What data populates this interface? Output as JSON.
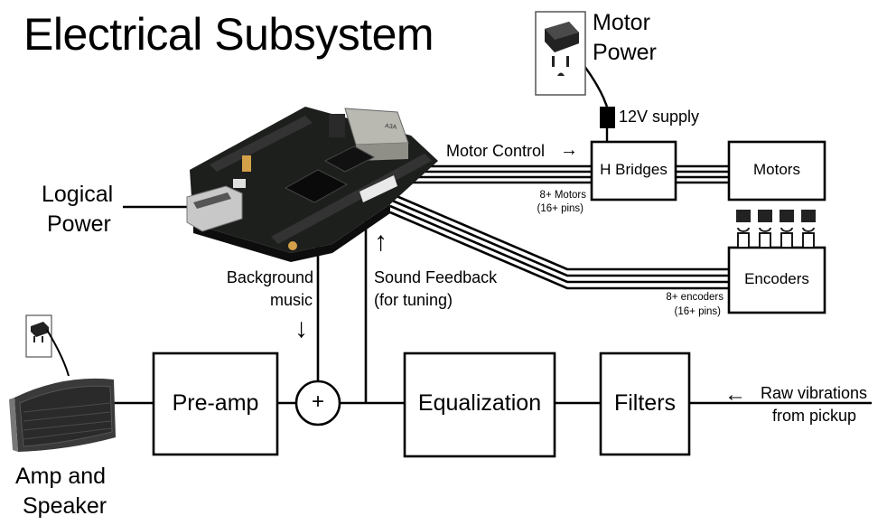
{
  "title": "Electrical Subsystem",
  "labels": {
    "motor_power": [
      "Motor",
      "Power"
    ],
    "supply_12v": "12V supply",
    "motor_control": "Motor Control",
    "motor_control_arrow": "→",
    "motors_count": [
      "8+ Motors",
      "(16+ pins)"
    ],
    "encoders_count": [
      "8+ encoders",
      "(16+ pins)"
    ],
    "logical_power": [
      "Logical",
      "Power"
    ],
    "background_music": [
      "Background",
      "music"
    ],
    "sound_feedback": [
      "Sound Feedback",
      "(for tuning)"
    ],
    "raw_vibrations": [
      "Raw vibrations",
      "from pickup"
    ],
    "raw_arrow": "←",
    "amp_speaker": [
      "Amp and",
      "Speaker"
    ],
    "up_arrow": "↑",
    "down_arrow": "↓"
  },
  "blocks": {
    "h_bridges": "H Bridges",
    "motors": "Motors",
    "encoders": "Encoders",
    "pre_amp": "Pre-amp",
    "summer": "+",
    "equalization": "Equalization",
    "filters": "Filters"
  },
  "board": {
    "chip_label": "A3A"
  },
  "icons": {
    "board": "beaglebone-board-icon",
    "outlet_motor": "wall-outlet-icon",
    "outlet_amp": "wall-outlet-icon",
    "speaker": "speaker-icon",
    "plug": "dc-plug-icon"
  }
}
